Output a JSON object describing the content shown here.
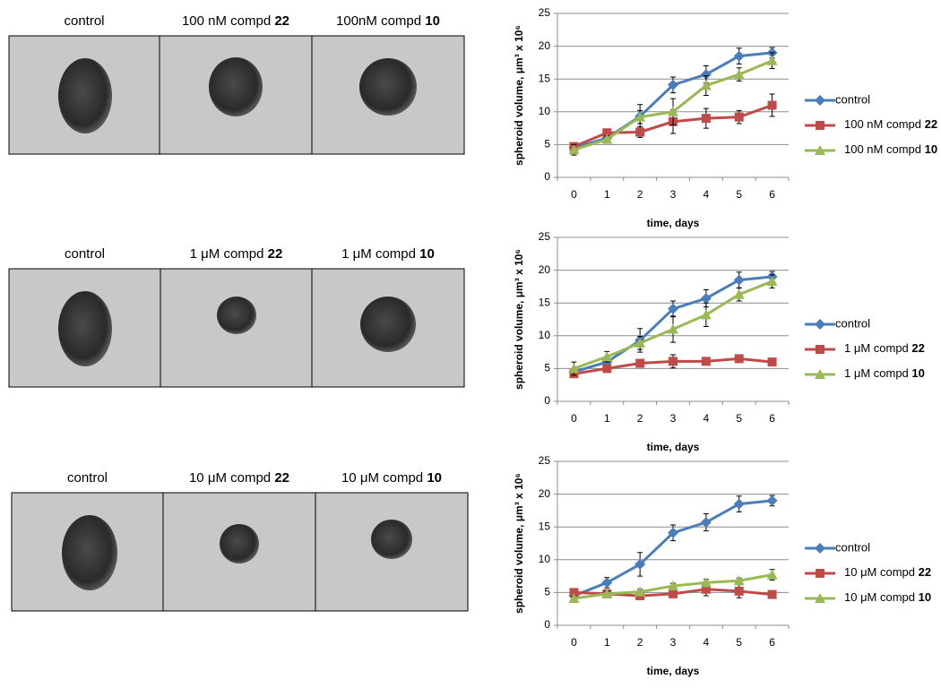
{
  "panels": [
    [
      "control",
      "100 nM compd 22",
      "100nM compd 10"
    ],
    [
      "control",
      "1 μM compd 22",
      "1 μM compd 10"
    ],
    [
      "control",
      "10 μM compd 22",
      "10 μM compd 10"
    ]
  ],
  "chart_data": [
    {
      "type": "line",
      "x_label": "time, days",
      "y_label": "spheroid volume, μm³ x 10⁶",
      "categories": [
        "0",
        "1",
        "2",
        "3",
        "4",
        "5",
        "6"
      ],
      "ylim": [
        0,
        25
      ],
      "yticks": [
        0,
        5,
        10,
        15,
        20,
        25
      ],
      "grid": true,
      "legend": "right",
      "series": [
        {
          "name": "control",
          "color": "#4a7ebb",
          "marker": "diamond",
          "values": [
            4.5,
            6,
            9.3,
            14.1,
            15.7,
            18.5,
            19
          ],
          "errors": [
            0.5,
            0.8,
            1.8,
            1.2,
            1.3,
            1.2,
            0.8
          ]
        },
        {
          "name": "100 nM compd 22",
          "color": "#be4b48",
          "marker": "square",
          "values": [
            4.7,
            6.8,
            6.9,
            8.5,
            9,
            9.2,
            11
          ],
          "errors": [
            0.5,
            0.5,
            0.8,
            1.8,
            1.5,
            1,
            1.7
          ]
        },
        {
          "name": "100 nM compd 10",
          "color": "#98b954",
          "marker": "triangle",
          "values": [
            4.2,
            5.8,
            9.2,
            10,
            14,
            15.7,
            17.8
          ],
          "errors": [
            0.8,
            0.5,
            1,
            2,
            1.5,
            1,
            1.2
          ]
        }
      ]
    },
    {
      "type": "line",
      "x_label": "time, days",
      "y_label": "spheroid volume, μm³ x 10⁶",
      "categories": [
        "0",
        "1",
        "2",
        "3",
        "4",
        "5",
        "6"
      ],
      "ylim": [
        0,
        25
      ],
      "yticks": [
        0,
        5,
        10,
        15,
        20,
        25
      ],
      "grid": true,
      "legend": "right",
      "series": [
        {
          "name": "control",
          "color": "#4a7ebb",
          "marker": "diamond",
          "values": [
            4.5,
            6,
            9.3,
            14.1,
            15.7,
            18.5,
            19
          ],
          "errors": [
            0.5,
            0.8,
            1.8,
            1.2,
            1.3,
            1.2,
            0.8
          ]
        },
        {
          "name": "1 μM compd 22",
          "color": "#be4b48",
          "marker": "square",
          "values": [
            4.2,
            5,
            5.8,
            6.1,
            6.1,
            6.5,
            6
          ],
          "errors": [
            0.5,
            0.5,
            0.4,
            1,
            0.4,
            0.3,
            0.3
          ]
        },
        {
          "name": "1 μM compd 10",
          "color": "#98b954",
          "marker": "triangle",
          "values": [
            5,
            6.8,
            8.9,
            11,
            13.2,
            16.3,
            18.3
          ],
          "errors": [
            1,
            0.8,
            1,
            2,
            1.8,
            1,
            1
          ]
        }
      ]
    },
    {
      "type": "line",
      "x_label": "time, days",
      "y_label": "spheroid volume, μm³ x 10⁶",
      "categories": [
        "0",
        "1",
        "2",
        "3",
        "4",
        "5",
        "6"
      ],
      "ylim": [
        0,
        25
      ],
      "yticks": [
        0,
        5,
        10,
        15,
        20,
        25
      ],
      "grid": true,
      "legend": "right",
      "series": [
        {
          "name": "control",
          "color": "#4a7ebb",
          "marker": "diamond",
          "values": [
            4.5,
            6.5,
            9.3,
            14.1,
            15.7,
            18.5,
            19
          ],
          "errors": [
            0.5,
            0.8,
            1.8,
            1.2,
            1.3,
            1.2,
            0.8
          ]
        },
        {
          "name": "10 μM compd 22",
          "color": "#be4b48",
          "marker": "square",
          "values": [
            5,
            4.8,
            4.5,
            4.8,
            5.5,
            5.2,
            4.7
          ],
          "errors": [
            0.4,
            0.4,
            0.4,
            0.5,
            1,
            1,
            0.4
          ]
        },
        {
          "name": "10 μM compd 10",
          "color": "#98b954",
          "marker": "triangle",
          "values": [
            4.1,
            4.8,
            5.1,
            6,
            6.5,
            6.8,
            7.7
          ],
          "errors": [
            0.3,
            0.4,
            0.4,
            0.4,
            0.5,
            0.4,
            0.8
          ]
        }
      ]
    }
  ]
}
